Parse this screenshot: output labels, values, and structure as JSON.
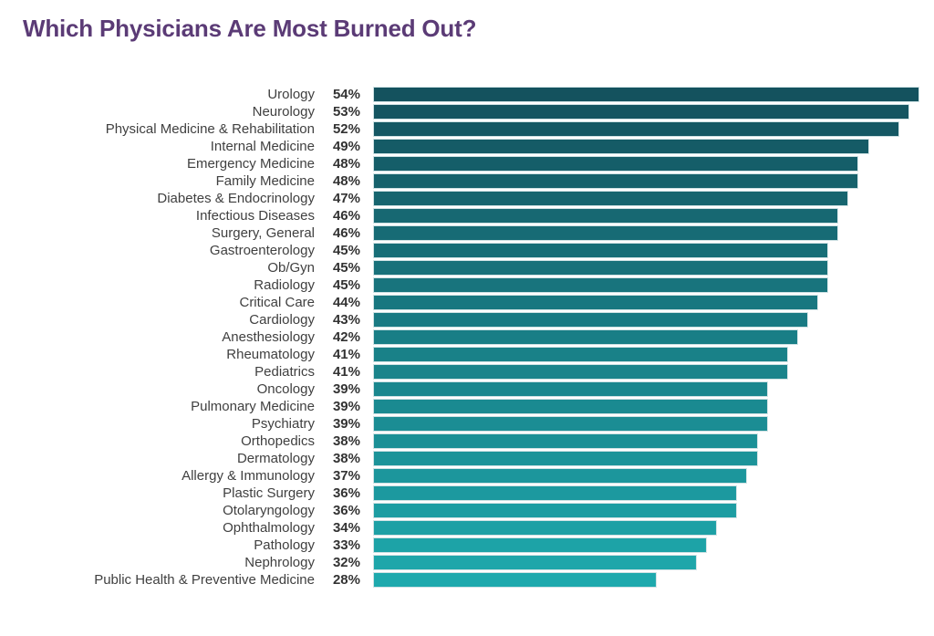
{
  "header": {
    "title": "Which Physicians Are Most Burned Out?",
    "title_color": "#5b3b76"
  },
  "chart_data": {
    "type": "bar",
    "orientation": "horizontal",
    "title": "Which Physicians Are Most Burned Out?",
    "xlabel": "",
    "ylabel": "",
    "unit": "%",
    "xlim": [
      0,
      54
    ],
    "grid": false,
    "legend": false,
    "value_labels_shown": true,
    "bar_color_start": "#14525e",
    "bar_color_end": "#1ea9ad",
    "bar_border_color": "#cfe2e4",
    "category_label_color": "#404040",
    "value_label_color": "#333333",
    "categories": [
      "Urology",
      "Neurology",
      "Physical Medicine & Rehabilitation",
      "Internal Medicine",
      "Emergency Medicine",
      "Family Medicine",
      "Diabetes & Endocrinology",
      "Infectious Diseases",
      "Surgery, General",
      "Gastroenterology",
      "Ob/Gyn",
      "Radiology",
      "Critical Care",
      "Cardiology",
      "Anesthesiology",
      "Rheumatology",
      "Pediatrics",
      "Oncology",
      "Pulmonary Medicine",
      "Psychiatry",
      "Orthopedics",
      "Dermatology",
      "Allergy & Immunology",
      "Plastic Surgery",
      "Otolaryngology",
      "Ophthalmology",
      "Pathology",
      "Nephrology",
      "Public Health & Preventive Medicine"
    ],
    "values": [
      54,
      53,
      52,
      49,
      48,
      48,
      47,
      46,
      46,
      45,
      45,
      45,
      44,
      43,
      42,
      41,
      41,
      39,
      39,
      39,
      38,
      38,
      37,
      36,
      36,
      34,
      33,
      32,
      28
    ]
  }
}
